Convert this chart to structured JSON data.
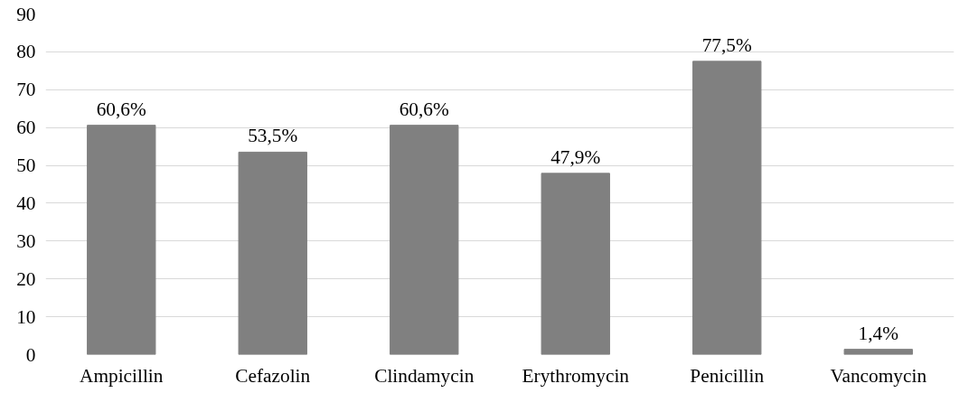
{
  "chart_data": {
    "type": "bar",
    "categories": [
      "Ampicillin",
      "Cefazolin",
      "Clindamycin",
      "Erythromycin",
      "Penicillin",
      "Vancomycin"
    ],
    "values": [
      60.6,
      53.5,
      60.6,
      47.9,
      77.5,
      1.4
    ],
    "value_labels": [
      "60,6%",
      "53,5%",
      "60,6%",
      "47,9%",
      "77,5%",
      "1,4%"
    ],
    "color": "#808080",
    "ylim": [
      0,
      90
    ],
    "yticks": [
      0,
      10,
      20,
      30,
      40,
      50,
      60,
      70,
      80,
      90
    ],
    "grid": "y"
  }
}
